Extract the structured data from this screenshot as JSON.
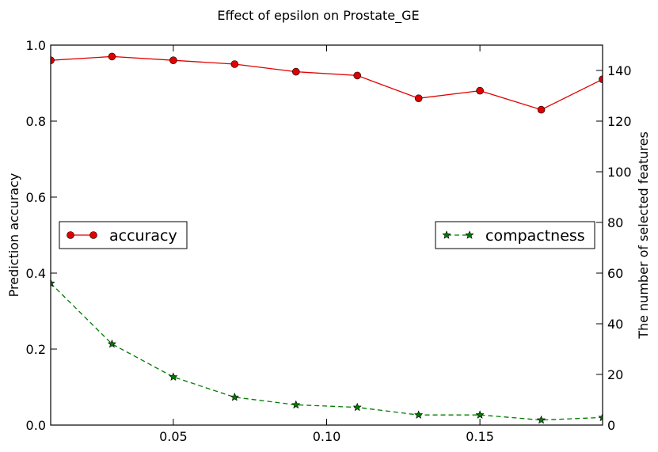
{
  "chart_data": {
    "type": "line",
    "title": "Effect of epsilon on Prostate_GE",
    "xlabel": "",
    "ylabel_left": "Prediction accuracy",
    "ylabel_right": "The number of selected features",
    "xlim": [
      0.01,
      0.19
    ],
    "ylim_left": [
      0.0,
      1.0
    ],
    "ylim_right": [
      0,
      150
    ],
    "x_ticks": [
      0.05,
      0.1,
      0.15
    ],
    "x_tick_labels": [
      "0.05",
      "0.10",
      "0.15"
    ],
    "y_left_ticks": [
      0.0,
      0.2,
      0.4,
      0.6,
      0.8,
      1.0
    ],
    "y_left_tick_labels": [
      "0.0",
      "0.2",
      "0.4",
      "0.6",
      "0.8",
      "1.0"
    ],
    "y_right_ticks": [
      0,
      20,
      40,
      60,
      80,
      100,
      120,
      140
    ],
    "y_right_tick_labels": [
      "0",
      "20",
      "40",
      "60",
      "80",
      "100",
      "120",
      "140"
    ],
    "grid": false,
    "x": [
      0.01,
      0.03,
      0.05,
      0.07,
      0.09,
      0.11,
      0.13,
      0.15,
      0.17,
      0.19
    ],
    "series": [
      {
        "name": "accuracy",
        "axis": "left",
        "color": "#e00000",
        "marker": "circle",
        "linestyle": "solid",
        "values": [
          0.96,
          0.97,
          0.96,
          0.95,
          0.93,
          0.92,
          0.86,
          0.88,
          0.83,
          0.91
        ],
        "legend_position": "center-left"
      },
      {
        "name": "compactness",
        "axis": "right",
        "color": "#007a00",
        "marker": "star",
        "linestyle": "dashed",
        "values": [
          56,
          32,
          19,
          11,
          8,
          7,
          4,
          4,
          2,
          3
        ],
        "legend_position": "center-right"
      }
    ]
  }
}
